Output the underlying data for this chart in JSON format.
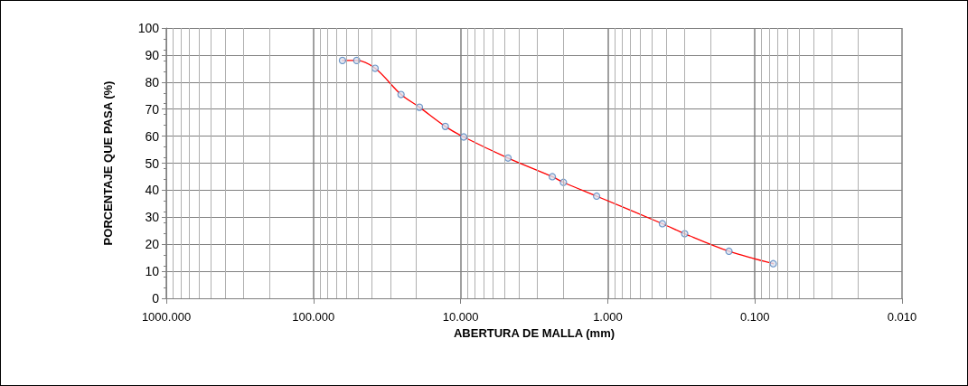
{
  "chart_data": {
    "type": "line",
    "xlabel": "ABERTURA DE MALLA (mm)",
    "ylabel": "PORCENTAJE QUE PASA (%)",
    "x": [
      63.5,
      50.8,
      38.1,
      25.4,
      19.05,
      12.7,
      9.525,
      4.76,
      2.38,
      2.0,
      1.19,
      0.425,
      0.3,
      0.15,
      0.075
    ],
    "series": [
      {
        "color": "#ff0000",
        "marker": "none",
        "values": [
          88,
          88,
          85.1,
          75.4,
          70.7,
          63.6,
          59.7,
          51.9,
          45.0,
          42.9,
          37.8,
          27.6,
          23.9,
          17.4,
          12.8
        ]
      },
      {
        "type": "scatter",
        "color": "#4f81bd",
        "marker": "circle",
        "values": [
          88,
          88,
          85.1,
          75.4,
          70.7,
          63.6,
          59.7,
          51.9,
          45.0,
          42.9,
          37.8,
          27.6,
          23.9,
          17.4,
          12.8
        ]
      }
    ],
    "log": "x",
    "xlim": [
      1000,
      0.01
    ],
    "xticks": [
      {
        "value": 1000,
        "label": "1000.000"
      },
      {
        "value": 100,
        "label": "100.000"
      },
      {
        "value": 10,
        "label": "10.000"
      },
      {
        "value": 1,
        "label": "1.000"
      },
      {
        "value": 0.1,
        "label": "0.100"
      },
      {
        "value": 0.01,
        "label": "0.010"
      }
    ],
    "ylim": [
      0,
      100
    ],
    "yticks": [
      0,
      10,
      20,
      30,
      40,
      50,
      60,
      70,
      80,
      90,
      100
    ],
    "grid": true
  }
}
